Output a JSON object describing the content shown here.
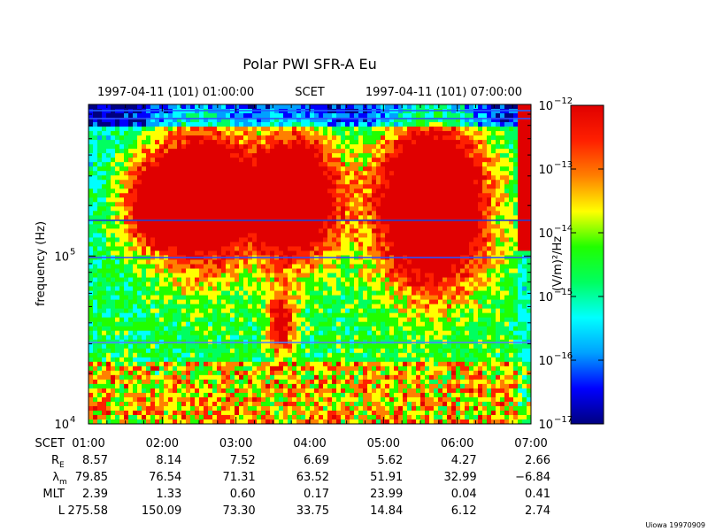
{
  "chart_data": {
    "type": "heatmap",
    "title": "Polar PWI SFR-A Eu",
    "subtitle": {
      "start": "1997-04-11 (101) 01:00:00",
      "label": "SCET",
      "end": "1997-04-11 (101) 07:00:00"
    },
    "ylabel": "frequency (Hz)",
    "yscale": "log",
    "ylim": [
      10000,
      800000
    ],
    "y_ticks": [
      {
        "base": "10",
        "exp": "4",
        "value": 10000
      },
      {
        "base": "10",
        "exp": "5",
        "value": 100000
      }
    ],
    "x_ticks": [
      "01:00",
      "02:00",
      "03:00",
      "04:00",
      "05:00",
      "06:00",
      "07:00"
    ],
    "xlim_hours": [
      1,
      7
    ],
    "colorbar": {
      "label": "(V/m)²/Hz",
      "scale": "log",
      "range": [
        1e-17,
        1e-12
      ],
      "ticks": [
        {
          "base": "10",
          "exp": "−12",
          "value": 1e-12
        },
        {
          "base": "10",
          "exp": "−13",
          "value": 1e-13
        },
        {
          "base": "10",
          "exp": "−14",
          "value": 1e-14
        },
        {
          "base": "10",
          "exp": "−15",
          "value": 1e-15
        },
        {
          "base": "10",
          "exp": "−16",
          "value": 1e-16
        },
        {
          "base": "10",
          "exp": "−17",
          "value": 1e-17
        }
      ],
      "colors": [
        "#000080",
        "#0000ff",
        "#00a0ff",
        "#00ffff",
        "#00ff60",
        "#20ff00",
        "#ffff00",
        "#ff8000",
        "#ff2000",
        "#e00000"
      ]
    },
    "ephemeris": [
      {
        "label": "SCET",
        "sub": "",
        "values": [
          "01:00",
          "02:00",
          "03:00",
          "04:00",
          "05:00",
          "06:00",
          "07:00"
        ]
      },
      {
        "label": "R",
        "sub": "E",
        "values": [
          "8.57",
          "8.14",
          "7.52",
          "6.69",
          "5.62",
          "4.27",
          "2.66"
        ]
      },
      {
        "label": "λ",
        "sub": "m",
        "values": [
          "79.85",
          "76.54",
          "71.31",
          "63.52",
          "51.91",
          "32.99",
          "−6.84"
        ]
      },
      {
        "label": "MLT",
        "sub": "",
        "values": [
          "2.39",
          "1.33",
          "0.60",
          "0.17",
          "23.99",
          "0.04",
          "0.41"
        ]
      },
      {
        "label": "L",
        "sub": "",
        "values": [
          "275.58",
          "150.09",
          "73.30",
          "33.75",
          "14.84",
          "6.12",
          "2.74"
        ]
      }
    ],
    "footer": "Uiowa 19970909"
  }
}
